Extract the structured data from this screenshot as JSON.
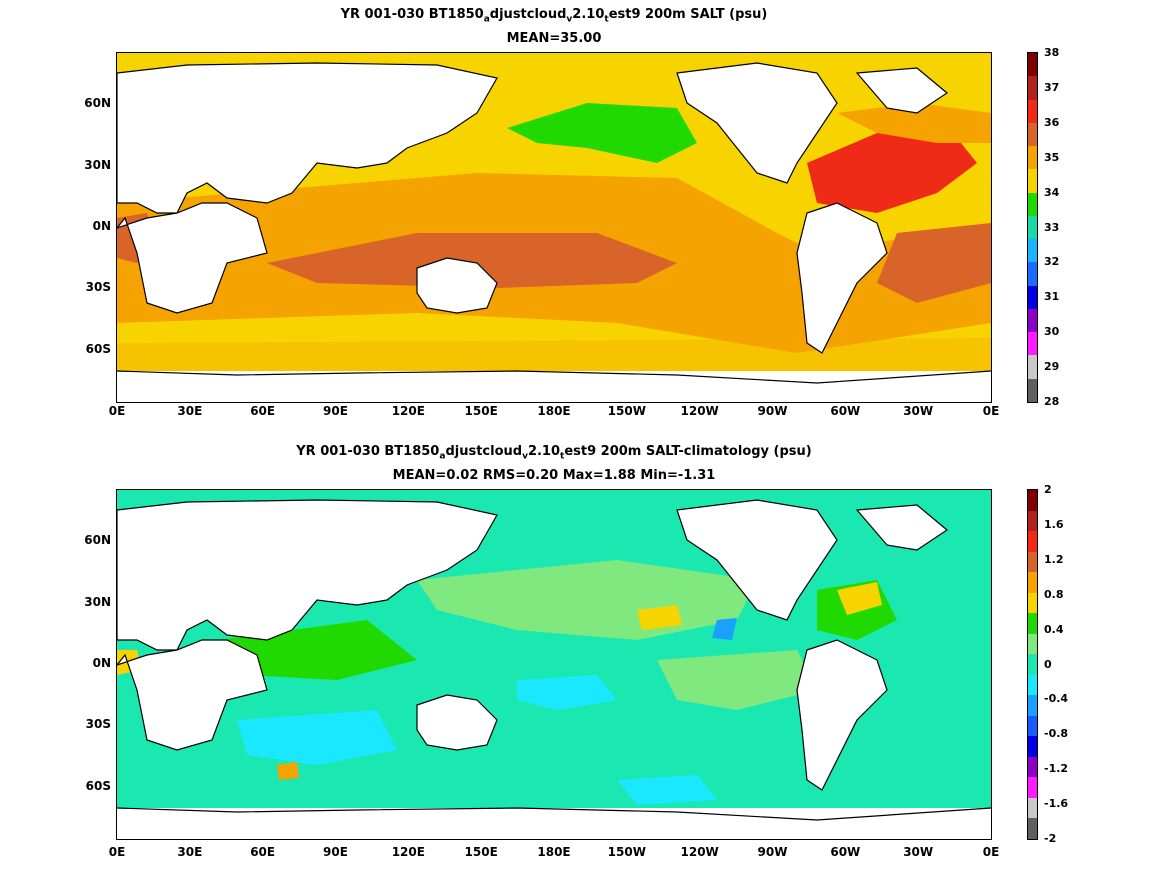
{
  "panels": [
    {
      "title_parts": [
        "YR 001-030 BT1850",
        "a",
        "djustcloud",
        "v",
        "2.10",
        "t",
        "est9 200m SALT (psu)"
      ],
      "subtitle": "MEAN=35.00",
      "colorbar_ticks": [
        "38",
        "37",
        "36",
        "35",
        "34",
        "33",
        "32",
        "31",
        "30",
        "29",
        "28"
      ],
      "colorbar_colors": [
        "#800000",
        "#b0231c",
        "#ef2a17",
        "#d8642a",
        "#f5a300",
        "#f7d400",
        "#1fd900",
        "#1ad9a8",
        "#1ab3ff",
        "#1a6bff",
        "#0000e0",
        "#8c00c8",
        "#ff1aff",
        "#c8c8c8",
        "#606060"
      ]
    },
    {
      "title_parts": [
        "YR 001-030 BT1850",
        "a",
        "djustcloud",
        "v",
        "2.10",
        "t",
        "est9 200m SALT-climatology (psu)"
      ],
      "subtitle": "MEAN=0.02   RMS=0.20   Max=1.88   Min=-1.31",
      "colorbar_ticks": [
        "2",
        "1.6",
        "1.2",
        "0.8",
        "0.4",
        "0",
        "-0.4",
        "-0.8",
        "-1.2",
        "-1.6",
        "-2"
      ],
      "colorbar_colors": [
        "#800000",
        "#b0231c",
        "#ef2a17",
        "#d8642a",
        "#f5a300",
        "#f7d400",
        "#1fd900",
        "#7fe87f",
        "#1ae8b0",
        "#1ae8ff",
        "#1aa0ff",
        "#1a5aff",
        "#0000e0",
        "#8c00c8",
        "#ff1aff",
        "#c8c8c8",
        "#606060"
      ]
    }
  ],
  "xticks": [
    "0E",
    "30E",
    "60E",
    "90E",
    "120E",
    "150E",
    "180E",
    "150W",
    "120W",
    "90W",
    "60W",
    "30W",
    "0E"
  ],
  "yticks": [
    "60N",
    "30N",
    "0N",
    "30S",
    "60S"
  ]
}
